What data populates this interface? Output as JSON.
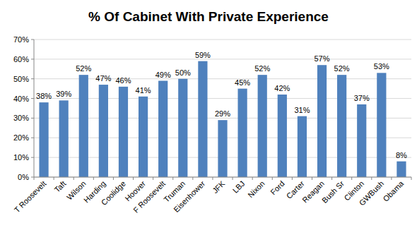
{
  "chart_data": {
    "type": "bar",
    "title": "% Of Cabinet With Private Experience",
    "categories": [
      "T Roosevelt",
      "Taft",
      "Wilson",
      "Harding",
      "Coolidge",
      "Hoover",
      "F Roosevelt",
      "Truman",
      "Eisenhower",
      "JFK",
      "LBJ",
      "Nixon",
      "Ford",
      "Carter",
      "Reagan",
      "Bush Sr",
      "Clinton",
      "GWBush",
      "Obama"
    ],
    "values": [
      38,
      39,
      52,
      47,
      46,
      41,
      49,
      50,
      59,
      29,
      45,
      52,
      42,
      31,
      57,
      52,
      37,
      53,
      8
    ],
    "value_labels": [
      "38%",
      "39%",
      "52%",
      "47%",
      "46%",
      "41%",
      "49%",
      "50%",
      "59%",
      "29%",
      "45%",
      "52%",
      "42%",
      "31%",
      "57%",
      "52%",
      "37%",
      "53%",
      "8%"
    ],
    "color": "#4f81bd",
    "ylim": [
      0,
      70
    ],
    "yticks": [
      {
        "value": 0,
        "label": "0%"
      },
      {
        "value": 10,
        "label": "10%"
      },
      {
        "value": 20,
        "label": "20%"
      },
      {
        "value": 30,
        "label": "30%"
      },
      {
        "value": 40,
        "label": "40%"
      },
      {
        "value": 50,
        "label": "50%"
      },
      {
        "value": 60,
        "label": "60%"
      },
      {
        "value": 70,
        "label": "70%"
      }
    ],
    "grid": true,
    "data_labels": true
  }
}
